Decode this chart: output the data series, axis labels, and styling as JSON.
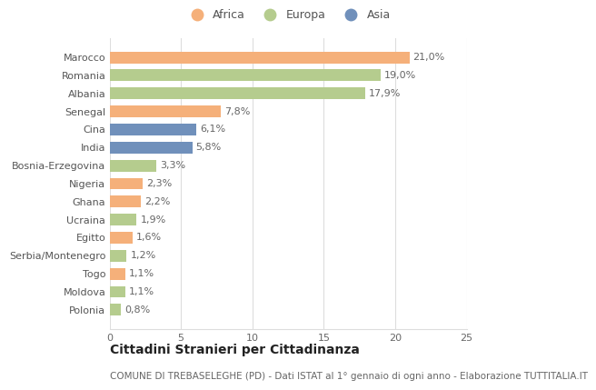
{
  "categories": [
    "Marocco",
    "Romania",
    "Albania",
    "Senegal",
    "Cina",
    "India",
    "Bosnia-Erzegovina",
    "Nigeria",
    "Ghana",
    "Ucraina",
    "Egitto",
    "Serbia/Montenegro",
    "Togo",
    "Moldova",
    "Polonia"
  ],
  "values": [
    21.0,
    19.0,
    17.9,
    7.8,
    6.1,
    5.8,
    3.3,
    2.3,
    2.2,
    1.9,
    1.6,
    1.2,
    1.1,
    1.1,
    0.8
  ],
  "labels": [
    "21,0%",
    "19,0%",
    "17,9%",
    "7,8%",
    "6,1%",
    "5,8%",
    "3,3%",
    "2,3%",
    "2,2%",
    "1,9%",
    "1,6%",
    "1,2%",
    "1,1%",
    "1,1%",
    "0,8%"
  ],
  "continents": [
    "Africa",
    "Europa",
    "Europa",
    "Africa",
    "Asia",
    "Asia",
    "Europa",
    "Africa",
    "Africa",
    "Europa",
    "Africa",
    "Europa",
    "Africa",
    "Europa",
    "Europa"
  ],
  "colors": {
    "Africa": "#F5B07A",
    "Europa": "#B5CC8E",
    "Asia": "#7090BB"
  },
  "xlim": [
    0,
    25
  ],
  "xticks": [
    0,
    5,
    10,
    15,
    20,
    25
  ],
  "title": "Cittadini Stranieri per Cittadinanza",
  "subtitle": "COMUNE DI TREBASELEGHE (PD) - Dati ISTAT al 1° gennaio di ogni anno - Elaborazione TUTTITALIA.IT",
  "bg_color": "#FFFFFF",
  "grid_color": "#DDDDDD",
  "bar_height": 0.65,
  "title_fontsize": 10,
  "subtitle_fontsize": 7.5,
  "tick_fontsize": 8,
  "label_fontsize": 8,
  "legend_order": [
    "Africa",
    "Europa",
    "Asia"
  ]
}
